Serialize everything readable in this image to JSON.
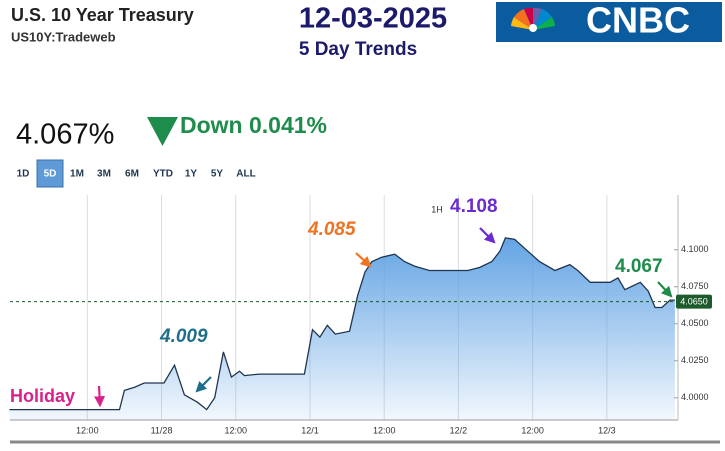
{
  "header": {
    "title": "U.S. 10 Year Treasury",
    "subtitle": "US10Y:Tradeweb",
    "date": "12-03-2025",
    "trend_label": "5 Day Trends",
    "logo_text": "CNBC"
  },
  "quote": {
    "price": "4.067%",
    "change": "Down 0.041%",
    "change_color": "#1e8c4a"
  },
  "range_buttons": [
    "1D",
    "5D",
    "1M",
    "3M",
    "6M",
    "YTD",
    "1Y",
    "5Y",
    "ALL"
  ],
  "active_range": "5D",
  "chart_data": {
    "type": "area-line",
    "interval_label": "1H",
    "x": [
      -0.6,
      17.2,
      18.0,
      19.6,
      21.2,
      24.4,
      26.1,
      27.7,
      29.8,
      31.3,
      32.6,
      34.0,
      35.3,
      36.6,
      37.4,
      39.8,
      47.1,
      48.4,
      49.6,
      50.8,
      52.1,
      54.4,
      55.7,
      56.9,
      58.0,
      59.6,
      61.7,
      63.3,
      64.9,
      67.3,
      69.8,
      72.2,
      73.5,
      75.4,
      77.4,
      78.7,
      79.6,
      81.1,
      82.7,
      85.1,
      87.6,
      90.0,
      91.3,
      93.3,
      96.5,
      97.8,
      98.9,
      101.4,
      102.7,
      103.8,
      104.9,
      106.2,
      107.0
    ],
    "values": [
      3.992,
      3.992,
      4.005,
      4.007,
      4.01,
      4.01,
      4.022,
      4.002,
      3.997,
      3.992,
      4.0,
      4.031,
      4.014,
      4.018,
      4.015,
      4.016,
      4.016,
      4.046,
      4.041,
      4.049,
      4.043,
      4.045,
      4.069,
      4.085,
      4.092,
      4.095,
      4.097,
      4.092,
      4.089,
      4.086,
      4.086,
      4.086,
      4.086,
      4.088,
      4.092,
      4.099,
      4.108,
      4.107,
      4.101,
      4.092,
      4.086,
      4.09,
      4.086,
      4.078,
      4.078,
      4.081,
      4.073,
      4.078,
      4.072,
      4.061,
      4.061,
      4.066,
      4.066
    ],
    "line_color": "#1f3550",
    "fill_color": "#5b9fe2",
    "xlim": [
      -0.5,
      107.5
    ],
    "xticks": [
      {
        "value": 12,
        "label": "12:00"
      },
      {
        "value": 24,
        "label": "11/28"
      },
      {
        "value": 36,
        "label": "12:00"
      },
      {
        "value": 48,
        "label": "12/1"
      },
      {
        "value": 60,
        "label": "12:00"
      },
      {
        "value": 72,
        "label": "12/2"
      },
      {
        "value": 84,
        "label": "12:00"
      },
      {
        "value": 96,
        "label": "12/3"
      }
    ],
    "ylim": [
      3.985,
      4.137
    ],
    "yticks": [
      {
        "value": 4.0,
        "label": "4.0000"
      },
      {
        "value": 4.025,
        "label": "4.0250"
      },
      {
        "value": 4.05,
        "label": "4.0500"
      },
      {
        "value": 4.075,
        "label": "4.0750"
      },
      {
        "value": 4.1,
        "label": "4.1000"
      }
    ],
    "last_value": {
      "value": 4.065,
      "label": "4.0650",
      "color": "#1d5a2c"
    },
    "annotations": [
      {
        "text": "Holiday",
        "color": "#d6228a"
      },
      {
        "text": "4.009",
        "color": "#1f6f8b"
      },
      {
        "text": "4.085",
        "color": "#f07322"
      },
      {
        "text": "4.108",
        "color": "#6a2bd0"
      },
      {
        "text": "4.067",
        "color": "#1e8c4a"
      }
    ]
  }
}
